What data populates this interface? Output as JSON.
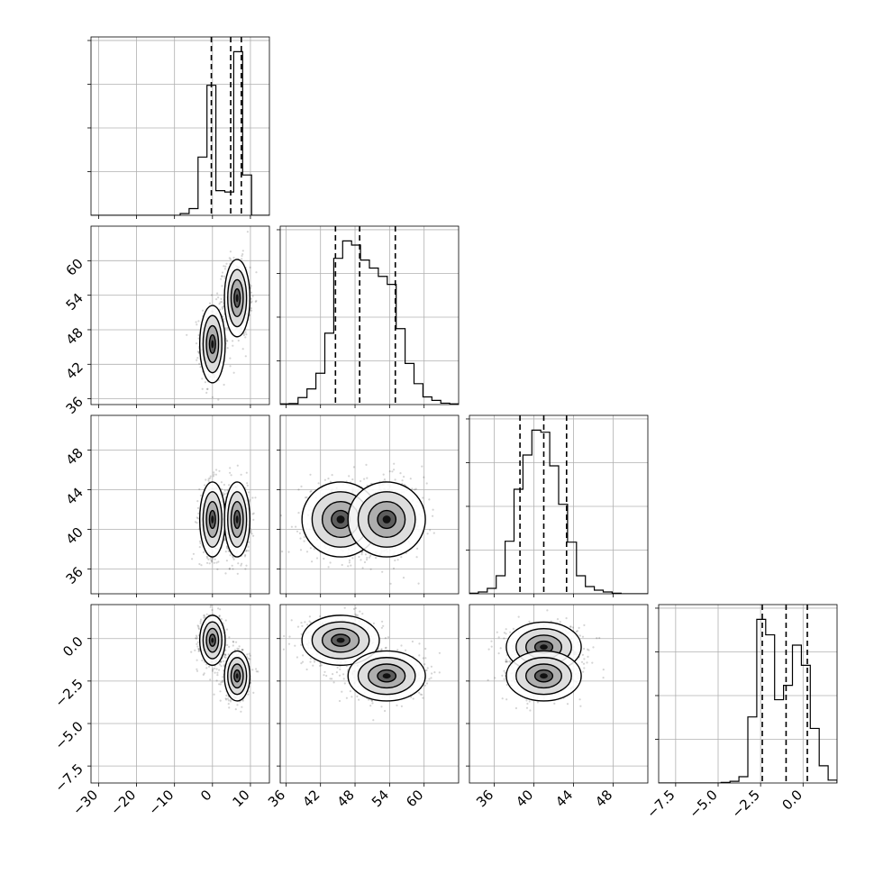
{
  "chart_data": {
    "type": "corner",
    "title": "",
    "grid": true,
    "parameters": [
      {
        "range": [
          -32,
          15
        ],
        "ticks": [
          -30,
          -20,
          -10,
          0,
          10
        ],
        "tick_labels": [
          "−30",
          "−20",
          "−10",
          "0",
          "10"
        ]
      },
      {
        "range": [
          35,
          66
        ],
        "ticks": [
          36,
          42,
          48,
          54,
          60
        ],
        "tick_labels": [
          "36",
          "42",
          "48",
          "54",
          "60"
        ]
      },
      {
        "range": [
          33.5,
          51.5
        ],
        "ticks": [
          36,
          40,
          44,
          48
        ],
        "tick_labels": [
          "36",
          "40",
          "44",
          "48"
        ]
      },
      {
        "range": [
          -8.5,
          2.0
        ],
        "ticks": [
          -7.5,
          -5.0,
          -2.5,
          0.0
        ],
        "tick_labels": [
          "−7.5",
          "−5.0",
          "−2.5",
          "0.0"
        ]
      }
    ],
    "histograms": [
      {
        "param": 0,
        "bin_edges": [
          -32,
          -29.65,
          -27.3,
          -24.95,
          -22.6,
          -20.25,
          -17.9,
          -15.55,
          -13.2,
          -10.85,
          -8.5,
          -6.15,
          -3.8,
          -1.45,
          0.9,
          3.25,
          5.6,
          7.95,
          10.3,
          12.65,
          15
        ],
        "counts": [
          0,
          0,
          0,
          0,
          0,
          0,
          0,
          0,
          0,
          0,
          4,
          15,
          130,
          290,
          55,
          52,
          365,
          90,
          0,
          0
        ],
        "quantiles": [
          -0.3,
          4.8,
          7.6
        ]
      },
      {
        "param": 1,
        "bin_edges": [
          35,
          36.55,
          38.1,
          39.65,
          41.2,
          42.75,
          44.3,
          45.85,
          47.4,
          48.95,
          50.5,
          52.05,
          53.6,
          55.15,
          56.7,
          58.25,
          59.8,
          61.35,
          62.9,
          64.45,
          66
        ],
        "counts": [
          2,
          3,
          20,
          45,
          90,
          205,
          420,
          470,
          458,
          415,
          392,
          368,
          345,
          218,
          118,
          60,
          22,
          12,
          4,
          2
        ],
        "quantiles": [
          44.6,
          48.8,
          55.0
        ]
      },
      {
        "param": 2,
        "bin_edges": [
          33.5,
          34.4,
          35.3,
          36.2,
          37.1,
          38.0,
          38.9,
          39.8,
          40.7,
          41.6,
          42.5,
          43.4,
          44.3,
          45.2,
          46.1,
          47.0,
          47.9,
          48.8,
          49.7,
          50.6,
          51.5
        ],
        "counts": [
          2,
          6,
          18,
          60,
          175,
          348,
          462,
          545,
          538,
          426,
          298,
          172,
          60,
          24,
          12,
          6,
          2,
          0,
          0,
          0
        ],
        "quantiles": [
          38.6,
          41.0,
          43.3
        ]
      },
      {
        "param": 3,
        "bin_edges": [
          -8.5,
          -7.975,
          -7.45,
          -6.925,
          -6.4,
          -5.875,
          -5.35,
          -4.825,
          -4.3,
          -3.775,
          -3.25,
          -2.725,
          -2.2,
          -1.675,
          -1.15,
          -0.625,
          -0.1,
          0.425,
          0.95,
          1.475,
          2.0
        ],
        "counts": [
          0,
          0,
          0,
          0,
          0,
          0,
          0,
          1,
          3,
          11,
          115,
          285,
          258,
          145,
          170,
          240,
          205,
          95,
          30,
          5
        ],
        "quantiles": [
          -2.4,
          -1.0,
          0.25
        ]
      }
    ],
    "joint_modes": [
      {
        "x": 1,
        "y": 0,
        "centers": [
          [
            0,
            45.5
          ],
          [
            6.5,
            53.5
          ]
        ]
      },
      {
        "x": 2,
        "y": 0,
        "centers": [
          [
            0,
            41
          ],
          [
            6.5,
            41
          ]
        ]
      },
      {
        "x": 2,
        "y": 1,
        "centers": [
          [
            45.5,
            41
          ],
          [
            53.5,
            41
          ]
        ]
      },
      {
        "x": 3,
        "y": 0,
        "centers": [
          [
            0,
            -0.1
          ],
          [
            6.5,
            -2.2
          ]
        ]
      },
      {
        "x": 3,
        "y": 1,
        "centers": [
          [
            45.5,
            -0.1
          ],
          [
            53.5,
            -2.2
          ]
        ]
      },
      {
        "x": 3,
        "y": 2,
        "centers": [
          [
            41,
            -0.5
          ],
          [
            41,
            -2.2
          ]
        ]
      }
    ]
  }
}
